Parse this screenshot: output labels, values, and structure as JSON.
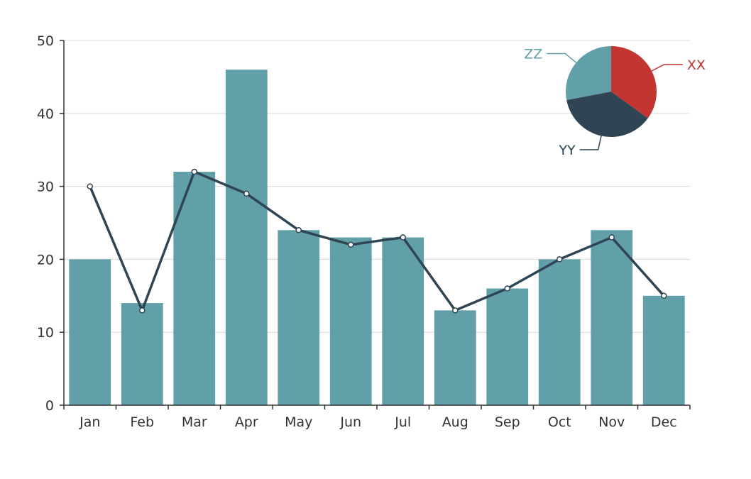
{
  "chart_data": {
    "type": "bar",
    "categories": [
      "Jan",
      "Feb",
      "Mar",
      "Apr",
      "May",
      "Jun",
      "Jul",
      "Aug",
      "Sep",
      "Oct",
      "Nov",
      "Dec"
    ],
    "series": [
      {
        "type": "bar",
        "values": [
          20,
          14,
          32,
          46,
          24,
          23,
          23,
          13,
          16,
          20,
          24,
          15
        ]
      },
      {
        "type": "line",
        "values": [
          30,
          13,
          32,
          29,
          24,
          22,
          23,
          13,
          16,
          20,
          23,
          15
        ]
      }
    ],
    "ylim": [
      0,
      50
    ],
    "yticks": [
      0,
      10,
      20,
      30,
      40,
      50
    ],
    "grid": true,
    "inset": {
      "type": "pie",
      "legend_position": "top-right",
      "slices": [
        {
          "label": "XX",
          "value": 35
        },
        {
          "label": "YY",
          "value": 37
        },
        {
          "label": "ZZ",
          "value": 28
        }
      ]
    }
  },
  "colors": {
    "bar": "#61a0a8",
    "line": "#2f4554",
    "point_fill": "#ffffff",
    "pie": [
      "#c23531",
      "#2f4554",
      "#61a0a8"
    ]
  }
}
